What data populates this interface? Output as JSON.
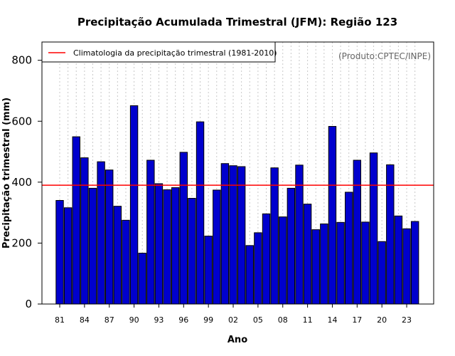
{
  "chart_data": {
    "type": "bar",
    "title": "Precipitação Acumulada Trimestral (JFM): Região 123",
    "xlabel": "Ano",
    "ylabel": "Precipitação trimestral (mm)",
    "ylim": [
      0,
      860
    ],
    "yticks": [
      0,
      200,
      400,
      600,
      800
    ],
    "categories": [
      "81",
      "82",
      "83",
      "84",
      "85",
      "86",
      "87",
      "88",
      "89",
      "90",
      "91",
      "92",
      "93",
      "94",
      "95",
      "96",
      "97",
      "98",
      "99",
      "00",
      "01",
      "02",
      "03",
      "04",
      "05",
      "06",
      "07",
      "08",
      "09",
      "10",
      "11",
      "12",
      "13",
      "14",
      "15",
      "16",
      "17",
      "18",
      "19",
      "20",
      "21",
      "22",
      "23",
      "24"
    ],
    "xtick_labels": [
      "81",
      "84",
      "87",
      "90",
      "93",
      "96",
      "99",
      "02",
      "05",
      "08",
      "11",
      "14",
      "17",
      "20",
      "23"
    ],
    "series": [
      {
        "name": "Precipitação trimestral",
        "color": "#0000cd",
        "values": [
          340,
          316,
          549,
          480,
          380,
          467,
          440,
          321,
          275,
          651,
          167,
          472,
          395,
          375,
          382,
          498,
          347,
          598,
          223,
          374,
          461,
          454,
          451,
          192,
          234,
          296,
          447,
          286,
          380,
          456,
          328,
          244,
          263,
          583,
          268,
          367,
          472,
          269,
          496,
          205,
          457,
          289,
          247,
          271
        ]
      }
    ],
    "reference_line": {
      "label": "Climatologia da precipitação trimestral (1981-2010)",
      "value": 390,
      "color": "#ff0000"
    },
    "grid": "vertical-dotted",
    "legend_position": "top-left",
    "annotation": "(Produto:CPTEC/INPE)"
  }
}
